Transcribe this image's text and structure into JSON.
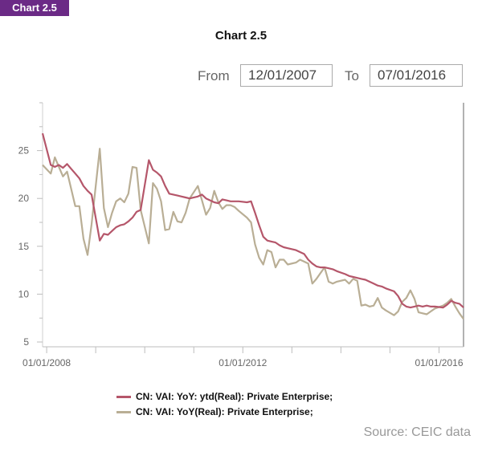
{
  "header": {
    "tag": "Chart 2.5",
    "title": "Chart 2.5"
  },
  "range": {
    "from_label": "From",
    "from_value": "12/01/2007",
    "to_label": "To",
    "to_value": "07/01/2016"
  },
  "source": "Source: CEIC data",
  "chart_data": {
    "type": "line",
    "title": "Chart 2.5",
    "xlabel": "",
    "ylabel": "",
    "x_ticks": [
      "01/01/2008",
      "01/01/2012",
      "01/01/2016"
    ],
    "y_ticks": [
      5,
      10,
      15,
      20,
      25
    ],
    "ylim": [
      4.5,
      30
    ],
    "xlim": [
      "2007-12",
      "2016-07"
    ],
    "grid": false,
    "legend_position": "bottom",
    "series": [
      {
        "name": "CN: VAI: YoY: ytd(Real): Private Enterprise;",
        "color": "#b5566a",
        "points": [
          [
            "2007-12",
            26.8
          ],
          [
            "2008-02",
            23.5
          ],
          [
            "2008-03",
            23.3
          ],
          [
            "2008-04",
            23.5
          ],
          [
            "2008-05",
            23.2
          ],
          [
            "2008-06",
            23.6
          ],
          [
            "2008-07",
            23.1
          ],
          [
            "2008-08",
            22.6
          ],
          [
            "2008-09",
            22.1
          ],
          [
            "2008-10",
            21.3
          ],
          [
            "2008-11",
            20.8
          ],
          [
            "2008-12",
            20.4
          ],
          [
            "2009-02",
            15.6
          ],
          [
            "2009-03",
            16.3
          ],
          [
            "2009-04",
            16.2
          ],
          [
            "2009-05",
            16.6
          ],
          [
            "2009-06",
            17.0
          ],
          [
            "2009-07",
            17.2
          ],
          [
            "2009-08",
            17.3
          ],
          [
            "2009-09",
            17.6
          ],
          [
            "2009-10",
            18.0
          ],
          [
            "2009-11",
            18.6
          ],
          [
            "2009-12",
            18.8
          ],
          [
            "2010-02",
            24.0
          ],
          [
            "2010-03",
            23.0
          ],
          [
            "2010-04",
            22.7
          ],
          [
            "2010-05",
            22.3
          ],
          [
            "2010-06",
            21.3
          ],
          [
            "2010-07",
            20.5
          ],
          [
            "2010-08",
            20.4
          ],
          [
            "2010-09",
            20.3
          ],
          [
            "2010-10",
            20.2
          ],
          [
            "2010-11",
            20.1
          ],
          [
            "2010-12",
            20.0
          ],
          [
            "2011-02",
            20.2
          ],
          [
            "2011-03",
            20.4
          ],
          [
            "2011-04",
            20.0
          ],
          [
            "2011-05",
            19.8
          ],
          [
            "2011-06",
            19.6
          ],
          [
            "2011-07",
            19.5
          ],
          [
            "2011-08",
            19.9
          ],
          [
            "2011-09",
            19.8
          ],
          [
            "2011-10",
            19.7
          ],
          [
            "2011-11",
            19.7
          ],
          [
            "2011-12",
            19.7
          ],
          [
            "2012-02",
            19.6
          ],
          [
            "2012-03",
            19.7
          ],
          [
            "2012-04",
            18.5
          ],
          [
            "2012-05",
            17.2
          ],
          [
            "2012-06",
            16.0
          ],
          [
            "2012-07",
            15.6
          ],
          [
            "2012-08",
            15.5
          ],
          [
            "2012-09",
            15.4
          ],
          [
            "2012-10",
            15.1
          ],
          [
            "2012-11",
            14.9
          ],
          [
            "2012-12",
            14.8
          ],
          [
            "2013-02",
            14.6
          ],
          [
            "2013-03",
            14.4
          ],
          [
            "2013-04",
            14.2
          ],
          [
            "2013-05",
            13.6
          ],
          [
            "2013-06",
            13.2
          ],
          [
            "2013-07",
            12.9
          ],
          [
            "2013-08",
            12.8
          ],
          [
            "2013-09",
            12.8
          ],
          [
            "2013-10",
            12.7
          ],
          [
            "2013-11",
            12.6
          ],
          [
            "2013-12",
            12.4
          ],
          [
            "2014-02",
            12.1
          ],
          [
            "2014-03",
            11.9
          ],
          [
            "2014-04",
            11.8
          ],
          [
            "2014-05",
            11.7
          ],
          [
            "2014-06",
            11.6
          ],
          [
            "2014-07",
            11.5
          ],
          [
            "2014-08",
            11.3
          ],
          [
            "2014-09",
            11.1
          ],
          [
            "2014-10",
            10.9
          ],
          [
            "2014-11",
            10.8
          ],
          [
            "2014-12",
            10.6
          ],
          [
            "2015-02",
            10.3
          ],
          [
            "2015-03",
            9.8
          ],
          [
            "2015-04",
            9.0
          ],
          [
            "2015-05",
            8.7
          ],
          [
            "2015-06",
            8.6
          ],
          [
            "2015-07",
            8.7
          ],
          [
            "2015-08",
            8.8
          ],
          [
            "2015-09",
            8.7
          ],
          [
            "2015-10",
            8.8
          ],
          [
            "2015-11",
            8.7
          ],
          [
            "2015-12",
            8.7
          ],
          [
            "2016-02",
            8.6
          ],
          [
            "2016-03",
            8.9
          ],
          [
            "2016-04",
            9.3
          ],
          [
            "2016-05",
            9.1
          ],
          [
            "2016-06",
            9.0
          ],
          [
            "2016-07",
            8.6
          ]
        ]
      },
      {
        "name": "CN: VAI: YoY(Real): Private Enterprise;",
        "color": "#b9ae95",
        "points": [
          [
            "2007-12",
            23.5
          ],
          [
            "2008-02",
            22.6
          ],
          [
            "2008-03",
            24.3
          ],
          [
            "2008-04",
            23.3
          ],
          [
            "2008-05",
            22.3
          ],
          [
            "2008-06",
            22.8
          ],
          [
            "2008-07",
            21.0
          ],
          [
            "2008-08",
            19.2
          ],
          [
            "2008-09",
            19.2
          ],
          [
            "2008-10",
            15.8
          ],
          [
            "2008-11",
            14.1
          ],
          [
            "2008-12",
            17.3
          ],
          [
            "2009-02",
            25.2
          ],
          [
            "2009-03",
            19.0
          ],
          [
            "2009-04",
            17.0
          ],
          [
            "2009-05",
            18.5
          ],
          [
            "2009-06",
            19.7
          ],
          [
            "2009-07",
            20.0
          ],
          [
            "2009-08",
            19.6
          ],
          [
            "2009-09",
            20.5
          ],
          [
            "2009-10",
            23.3
          ],
          [
            "2009-11",
            23.2
          ],
          [
            "2009-12",
            18.8
          ],
          [
            "2010-02",
            15.3
          ],
          [
            "2010-03",
            21.6
          ],
          [
            "2010-04",
            21.0
          ],
          [
            "2010-05",
            19.7
          ],
          [
            "2010-06",
            16.7
          ],
          [
            "2010-07",
            16.8
          ],
          [
            "2010-08",
            18.6
          ],
          [
            "2010-09",
            17.6
          ],
          [
            "2010-10",
            17.5
          ],
          [
            "2010-11",
            18.5
          ],
          [
            "2010-12",
            20.0
          ],
          [
            "2011-02",
            21.3
          ],
          [
            "2011-03",
            19.8
          ],
          [
            "2011-04",
            18.3
          ],
          [
            "2011-05",
            19.0
          ],
          [
            "2011-06",
            20.8
          ],
          [
            "2011-07",
            19.6
          ],
          [
            "2011-08",
            18.9
          ],
          [
            "2011-09",
            19.3
          ],
          [
            "2011-10",
            19.3
          ],
          [
            "2011-11",
            19.1
          ],
          [
            "2011-12",
            18.7
          ],
          [
            "2012-02",
            18.0
          ],
          [
            "2012-03",
            17.5
          ],
          [
            "2012-04",
            15.2
          ],
          [
            "2012-05",
            13.8
          ],
          [
            "2012-06",
            13.1
          ],
          [
            "2012-07",
            14.6
          ],
          [
            "2012-08",
            14.4
          ],
          [
            "2012-09",
            12.8
          ],
          [
            "2012-10",
            13.6
          ],
          [
            "2012-11",
            13.6
          ],
          [
            "2012-12",
            13.1
          ],
          [
            "2013-02",
            13.3
          ],
          [
            "2013-03",
            13.6
          ],
          [
            "2013-04",
            13.4
          ],
          [
            "2013-05",
            13.2
          ],
          [
            "2013-06",
            11.1
          ],
          [
            "2013-07",
            11.6
          ],
          [
            "2013-08",
            12.2
          ],
          [
            "2013-09",
            12.8
          ],
          [
            "2013-10",
            11.3
          ],
          [
            "2013-11",
            11.1
          ],
          [
            "2013-12",
            11.3
          ],
          [
            "2014-02",
            11.5
          ],
          [
            "2014-03",
            11.1
          ],
          [
            "2014-04",
            11.6
          ],
          [
            "2014-05",
            11.4
          ],
          [
            "2014-06",
            8.8
          ],
          [
            "2014-07",
            8.9
          ],
          [
            "2014-08",
            8.7
          ],
          [
            "2014-09",
            8.8
          ],
          [
            "2014-10",
            9.6
          ],
          [
            "2014-11",
            8.6
          ],
          [
            "2014-12",
            8.3
          ],
          [
            "2015-02",
            7.8
          ],
          [
            "2015-03",
            8.2
          ],
          [
            "2015-04",
            9.2
          ],
          [
            "2015-05",
            9.6
          ],
          [
            "2015-06",
            10.4
          ],
          [
            "2015-07",
            9.5
          ],
          [
            "2015-08",
            8.1
          ],
          [
            "2015-09",
            8.0
          ],
          [
            "2015-10",
            7.9
          ],
          [
            "2015-11",
            8.2
          ],
          [
            "2015-12",
            8.5
          ],
          [
            "2016-02",
            8.8
          ],
          [
            "2016-03",
            9.1
          ],
          [
            "2016-04",
            9.5
          ],
          [
            "2016-05",
            8.7
          ],
          [
            "2016-06",
            8.0
          ],
          [
            "2016-07",
            7.4
          ]
        ]
      }
    ]
  }
}
